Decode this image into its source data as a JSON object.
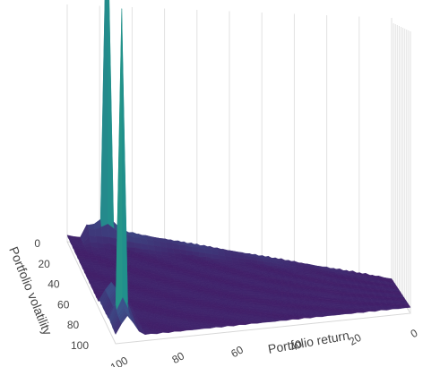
{
  "chart_data": {
    "type": "surface",
    "title": "",
    "colorscale": [
      "#440154",
      "#3b528b",
      "#21918c",
      "#5ec962",
      "#fde725"
    ],
    "grid": true,
    "axes": {
      "x": {
        "label": "Portfolio return",
        "range": [
          0,
          100
        ],
        "ticks": [
          0,
          20,
          40,
          60,
          80,
          100
        ]
      },
      "y": {
        "label": "Portfolio volatility",
        "range": [
          0,
          100
        ],
        "ticks": [
          0,
          20,
          40,
          60,
          80,
          100
        ]
      },
      "z": {
        "label": "",
        "show_tick_labels": false
      }
    },
    "surface": {
      "base_level": 0.02,
      "peaks": [
        {
          "return": 96,
          "volatility": 88,
          "height": 1.0
        },
        {
          "return": 88,
          "volatility": 2,
          "height": 1.15
        }
      ],
      "ridges": [
        {
          "along": "volatility",
          "at_return": 96,
          "from": 65,
          "to": 100,
          "height": 0.07
        },
        {
          "along": "return",
          "at_volatility": 2,
          "from": 0,
          "to": 95,
          "height": 0.05
        }
      ]
    }
  }
}
